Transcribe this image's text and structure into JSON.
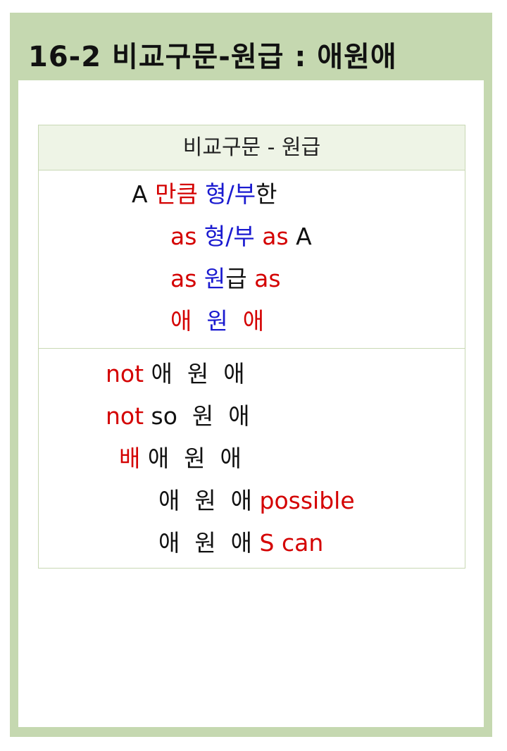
{
  "title": "16-2 비교구문-원급 : 애원애",
  "table": {
    "header": "비교구문 - 원급",
    "section1": [
      [
        {
          "t": "A ",
          "c": "blk"
        },
        {
          "t": "만큼 ",
          "c": "red"
        },
        {
          "t": "형/부",
          "c": "blue"
        },
        {
          "t": "한",
          "c": "blk"
        }
      ],
      [
        {
          "t": "as ",
          "c": "red"
        },
        {
          "t": "형/부 ",
          "c": "blue"
        },
        {
          "t": "as ",
          "c": "red"
        },
        {
          "t": "A",
          "c": "blk"
        }
      ],
      [
        {
          "t": "as ",
          "c": "red"
        },
        {
          "t": "원",
          "c": "blue"
        },
        {
          "t": "급 ",
          "c": "blk"
        },
        {
          "t": "as",
          "c": "red"
        }
      ],
      [
        {
          "t": "애  ",
          "c": "red"
        },
        {
          "t": "원  ",
          "c": "blue"
        },
        {
          "t": "애",
          "c": "red"
        }
      ]
    ],
    "section2": [
      [
        {
          "t": "not ",
          "c": "red"
        },
        {
          "t": "애  원  애",
          "c": "blk"
        }
      ],
      [
        {
          "t": "not ",
          "c": "red"
        },
        {
          "t": "so  원  애",
          "c": "blk"
        }
      ],
      [
        {
          "t": "배 ",
          "c": "red"
        },
        {
          "t": "애  원  애",
          "c": "blk"
        }
      ],
      [
        {
          "t": "애  원  애 ",
          "c": "blk"
        },
        {
          "t": "possible",
          "c": "red"
        }
      ],
      [
        {
          "t": "애  원  애 ",
          "c": "blk"
        },
        {
          "t": "S can",
          "c": "red"
        }
      ]
    ]
  }
}
